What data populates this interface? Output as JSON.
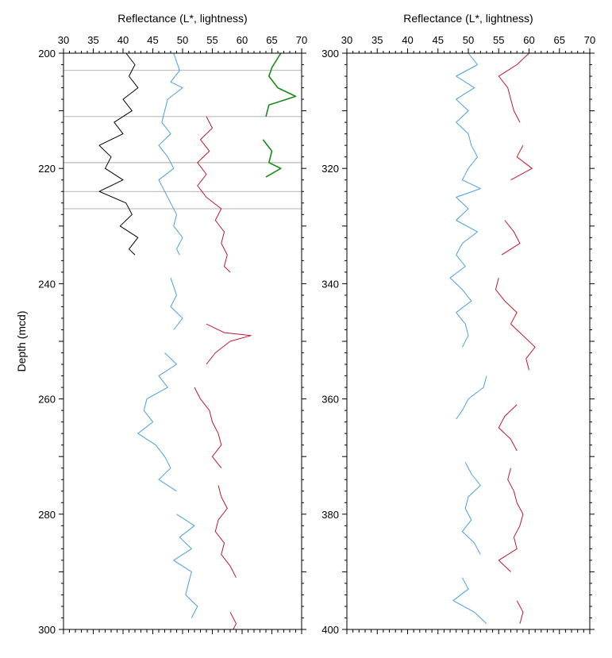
{
  "chart_data": [
    {
      "type": "line",
      "title": "",
      "xlabel": "Reflectance (L*, lightness)",
      "ylabel": "Depth (mcd)",
      "xlim": [
        30,
        70
      ],
      "ylim": [
        300,
        200
      ],
      "y_inverted": true,
      "x_ticks": [
        "30",
        "35",
        "40",
        "45",
        "50",
        "55",
        "60",
        "65",
        "70"
      ],
      "y_ticks": [
        "200",
        "220",
        "240",
        "260",
        "280",
        "300"
      ],
      "legend": "none",
      "series": [
        {
          "color": "#000000",
          "points": [
            [
              40.5,
              200
            ],
            [
              42,
              202
            ],
            [
              41,
              204
            ],
            [
              42.5,
              206
            ],
            [
              40,
              208
            ],
            [
              41.5,
              210
            ],
            [
              38.5,
              212
            ],
            [
              40,
              214
            ],
            [
              36,
              216
            ],
            [
              38,
              218
            ],
            [
              37,
              220
            ],
            [
              40,
              222
            ],
            [
              36,
              224
            ],
            [
              40.5,
              226
            ],
            [
              41.5,
              228
            ],
            [
              39.5,
              230
            ],
            [
              42.5,
              232
            ],
            [
              41,
              234
            ],
            [
              42,
              235
            ]
          ]
        },
        {
          "color": "#4a9fe6",
          "points": [
            [
              48.5,
              200
            ],
            [
              49.5,
              203
            ],
            [
              48,
              205
            ],
            [
              50,
              206
            ],
            [
              47.5,
              208
            ],
            [
              47,
              210
            ],
            [
              46.5,
              212
            ],
            [
              48,
              214
            ],
            [
              46,
              216
            ],
            [
              47.5,
              218
            ],
            [
              48.5,
              220
            ],
            [
              46,
              222
            ],
            [
              47,
              224
            ],
            [
              48,
              226
            ],
            [
              49,
              228
            ],
            [
              48.5,
              230
            ],
            [
              50,
              232
            ],
            [
              49,
              234
            ],
            [
              49.5,
              235
            ]
          ]
        },
        {
          "color": "#4a9fe6",
          "points": [
            [
              48,
              239
            ],
            [
              49,
              242
            ],
            [
              48,
              244
            ],
            [
              50,
              246
            ],
            [
              48.5,
              248
            ]
          ]
        },
        {
          "color": "#4a9fe6",
          "points": [
            [
              47,
              252
            ],
            [
              49,
              254
            ],
            [
              46,
              256
            ],
            [
              47.5,
              258
            ],
            [
              44,
              260
            ],
            [
              43.5,
              262
            ],
            [
              45,
              264
            ],
            [
              42.5,
              266
            ],
            [
              45.5,
              268
            ],
            [
              47,
              270
            ],
            [
              48,
              272
            ],
            [
              46,
              274
            ],
            [
              49,
              276
            ]
          ]
        },
        {
          "color": "#4a9fe6",
          "points": [
            [
              49,
              280
            ],
            [
              52,
              282
            ],
            [
              49.5,
              284
            ],
            [
              51.5,
              286
            ],
            [
              48.5,
              288
            ],
            [
              51.5,
              290
            ],
            [
              51,
              292
            ],
            [
              50.5,
              294
            ],
            [
              52.5,
              296
            ],
            [
              51.5,
              298
            ]
          ]
        },
        {
          "color": "#c0182a",
          "points": [
            [
              54,
              211
            ],
            [
              55,
              213
            ],
            [
              53,
              215
            ],
            [
              54.5,
              217
            ],
            [
              52.5,
              219
            ],
            [
              54,
              221
            ],
            [
              52.5,
              223
            ],
            [
              54,
              225
            ],
            [
              56.5,
              227
            ],
            [
              55.5,
              229
            ],
            [
              57,
              231
            ],
            [
              56.5,
              233
            ],
            [
              57.5,
              235
            ],
            [
              57,
              237
            ],
            [
              58,
              238
            ]
          ]
        },
        {
          "color": "#c0182a",
          "points": [
            [
              54,
              247
            ],
            [
              57,
              248.5
            ],
            [
              61.5,
              249
            ],
            [
              58,
              250
            ],
            [
              55.5,
              252
            ],
            [
              54,
              254
            ]
          ]
        },
        {
          "color": "#c0182a",
          "points": [
            [
              52,
              258
            ],
            [
              53,
              260
            ],
            [
              54.5,
              262
            ],
            [
              55,
              264
            ],
            [
              56,
              266
            ],
            [
              56.5,
              268
            ],
            [
              55,
              270
            ],
            [
              56.5,
              272
            ]
          ]
        },
        {
          "color": "#c0182a",
          "points": [
            [
              56,
              275
            ],
            [
              56.5,
              277
            ],
            [
              57.5,
              279
            ],
            [
              56,
              281
            ],
            [
              55.5,
              283
            ],
            [
              57,
              285
            ],
            [
              56.5,
              287
            ],
            [
              58,
              289
            ],
            [
              59,
              291
            ]
          ]
        },
        {
          "color": "#c0182a",
          "points": [
            [
              58,
              297
            ],
            [
              59,
              299
            ],
            [
              58.5,
              300
            ]
          ]
        },
        {
          "color": "#1a8a1a",
          "points": [
            [
              66.5,
              200
            ],
            [
              65,
              202.5
            ],
            [
              64.5,
              204
            ],
            [
              66,
              206
            ],
            [
              69,
              207.5
            ],
            [
              64.5,
              209
            ],
            [
              64,
              211
            ]
          ]
        },
        {
          "color": "#1a8a1a",
          "points": [
            [
              63.5,
              215
            ],
            [
              65,
              217
            ],
            [
              64.5,
              219
            ],
            [
              66.5,
              220
            ],
            [
              64,
              221.5
            ]
          ]
        }
      ],
      "reference_lines_y": [
        203,
        211,
        219,
        224,
        227
      ]
    },
    {
      "type": "line",
      "title": "",
      "xlabel": "Reflectance (L*, lightness)",
      "ylabel": "",
      "xlim": [
        30,
        70
      ],
      "ylim": [
        400,
        300
      ],
      "y_inverted": true,
      "x_ticks": [
        "30",
        "35",
        "40",
        "45",
        "50",
        "55",
        "60",
        "65",
        "70"
      ],
      "y_ticks": [
        "300",
        "320",
        "340",
        "360",
        "380",
        "400"
      ],
      "legend": "none",
      "series": [
        {
          "color": "#4a9fe6",
          "points": [
            [
              50,
              300
            ],
            [
              51.5,
              302
            ],
            [
              48,
              304
            ],
            [
              51,
              306
            ],
            [
              48,
              308
            ],
            [
              50,
              310
            ],
            [
              48,
              312
            ],
            [
              50,
              314
            ],
            [
              50.5,
              316
            ],
            [
              51.5,
              318
            ],
            [
              50,
              320
            ],
            [
              49,
              322
            ],
            [
              52,
              323.5
            ],
            [
              48,
              325
            ],
            [
              50,
              327
            ],
            [
              48,
              329
            ],
            [
              51.5,
              331
            ],
            [
              49,
              333
            ],
            [
              48,
              335
            ],
            [
              49.5,
              337
            ],
            [
              47,
              339
            ],
            [
              49,
              341
            ],
            [
              50.5,
              343
            ],
            [
              48,
              345
            ],
            [
              49.5,
              347
            ],
            [
              50,
              349
            ],
            [
              49,
              351
            ]
          ]
        },
        {
          "color": "#4a9fe6",
          "points": [
            [
              53,
              356
            ],
            [
              52.5,
              358
            ],
            [
              50,
              360
            ],
            [
              49,
              362
            ],
            [
              48,
              363.5
            ]
          ]
        },
        {
          "color": "#4a9fe6",
          "points": [
            [
              49.5,
              371
            ],
            [
              50.5,
              373
            ],
            [
              52,
              375
            ],
            [
              50,
              377
            ],
            [
              49.5,
              379
            ],
            [
              50.5,
              381
            ],
            [
              49,
              383
            ],
            [
              51,
              385
            ],
            [
              52,
              387
            ]
          ]
        },
        {
          "color": "#4a9fe6",
          "points": [
            [
              49,
              391
            ],
            [
              50,
              393
            ],
            [
              47.5,
              395
            ],
            [
              51,
              397
            ],
            [
              53,
              399
            ]
          ]
        },
        {
          "color": "#c0182a",
          "points": [
            [
              60,
              300
            ],
            [
              58,
              302
            ],
            [
              55,
              304
            ],
            [
              56.5,
              306
            ],
            [
              57,
              308
            ],
            [
              57.5,
              310
            ],
            [
              58.5,
              312
            ]
          ]
        },
        {
          "color": "#c0182a",
          "points": [
            [
              59,
              316
            ],
            [
              58,
              318
            ],
            [
              60.5,
              320
            ],
            [
              57,
              322
            ]
          ]
        },
        {
          "color": "#c0182a",
          "points": [
            [
              56,
              329
            ],
            [
              57.5,
              331
            ],
            [
              58.5,
              333
            ],
            [
              55.5,
              335
            ]
          ]
        },
        {
          "color": "#c0182a",
          "points": [
            [
              55,
              339
            ],
            [
              54.5,
              341
            ],
            [
              56,
              343
            ],
            [
              58,
              345
            ],
            [
              57,
              347
            ],
            [
              59,
              349
            ],
            [
              61,
              351
            ],
            [
              59.5,
              353
            ],
            [
              60,
              355
            ]
          ]
        },
        {
          "color": "#c0182a",
          "points": [
            [
              58,
              361
            ],
            [
              56,
              363
            ],
            [
              55,
              365
            ],
            [
              57,
              367
            ],
            [
              58,
              369
            ]
          ]
        },
        {
          "color": "#c0182a",
          "points": [
            [
              57,
              372
            ],
            [
              56.5,
              374
            ],
            [
              57.5,
              376
            ],
            [
              58,
              378
            ],
            [
              59,
              380
            ],
            [
              58.5,
              382
            ],
            [
              57.5,
              384
            ],
            [
              58,
              386
            ],
            [
              55,
              388
            ],
            [
              57,
              390
            ]
          ]
        },
        {
          "color": "#c0182a",
          "points": [
            [
              58,
              395
            ],
            [
              59,
              397
            ],
            [
              58.5,
              399
            ]
          ]
        }
      ],
      "reference_lines_y": []
    }
  ]
}
